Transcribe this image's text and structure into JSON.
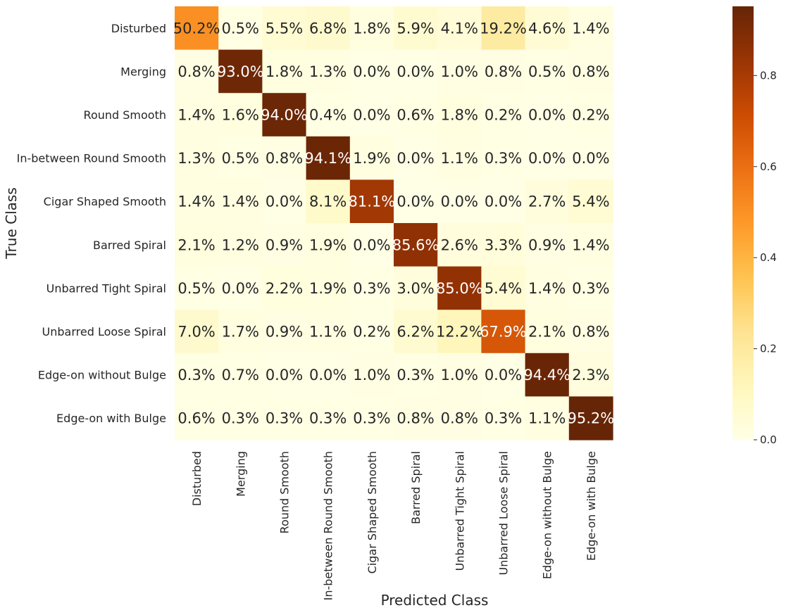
{
  "chart_data": {
    "type": "heatmap",
    "title": "",
    "xlabel": "Predicted Class",
    "ylabel": "True Class",
    "rows": [
      "Disturbed",
      "Merging",
      "Round Smooth",
      "In-between Round Smooth",
      "Cigar Shaped Smooth",
      "Barred Spiral",
      "Unbarred Tight Spiral",
      "Unbarred Loose Spiral",
      "Edge-on without Bulge",
      "Edge-on with Bulge"
    ],
    "columns": [
      "Disturbed",
      "Merging",
      "Round Smooth",
      "In-between Round Smooth",
      "Cigar Shaped Smooth",
      "Barred Spiral",
      "Unbarred Tight Spiral",
      "Unbarred Loose Spiral",
      "Edge-on without Bulge",
      "Edge-on with Bulge"
    ],
    "values": [
      [
        50.2,
        0.5,
        5.5,
        6.8,
        1.8,
        5.9,
        4.1,
        19.2,
        4.6,
        1.4
      ],
      [
        0.8,
        93.0,
        1.8,
        1.3,
        0.0,
        0.0,
        1.0,
        0.8,
        0.5,
        0.8
      ],
      [
        1.4,
        1.6,
        94.0,
        0.4,
        0.0,
        0.6,
        1.8,
        0.2,
        0.0,
        0.2
      ],
      [
        1.3,
        0.5,
        0.8,
        94.1,
        1.9,
        0.0,
        1.1,
        0.3,
        0.0,
        0.0
      ],
      [
        1.4,
        1.4,
        0.0,
        8.1,
        81.1,
        0.0,
        0.0,
        0.0,
        2.7,
        5.4
      ],
      [
        2.1,
        1.2,
        0.9,
        1.9,
        0.0,
        85.6,
        2.6,
        3.3,
        0.9,
        1.4
      ],
      [
        0.5,
        0.0,
        2.2,
        1.9,
        0.3,
        3.0,
        85.0,
        5.4,
        1.4,
        0.3
      ],
      [
        7.0,
        1.7,
        0.9,
        1.1,
        0.2,
        6.2,
        12.2,
        67.9,
        2.1,
        0.8
      ],
      [
        0.3,
        0.7,
        0.0,
        0.0,
        1.0,
        0.3,
        1.0,
        0.0,
        94.4,
        2.3
      ],
      [
        0.6,
        0.3,
        0.3,
        0.3,
        0.3,
        0.8,
        0.8,
        0.3,
        1.1,
        95.2
      ]
    ],
    "value_format": "percent_1dp",
    "colormap": "YlOrBr",
    "colorbar": {
      "range": [
        0.0,
        0.952
      ],
      "ticks": [
        0.0,
        0.2,
        0.4,
        0.6,
        0.8
      ],
      "tick_labels": [
        "0.0",
        "0.2",
        "0.4",
        "0.6",
        "0.8"
      ],
      "placement": "right"
    },
    "legend": "none",
    "grid": false
  }
}
